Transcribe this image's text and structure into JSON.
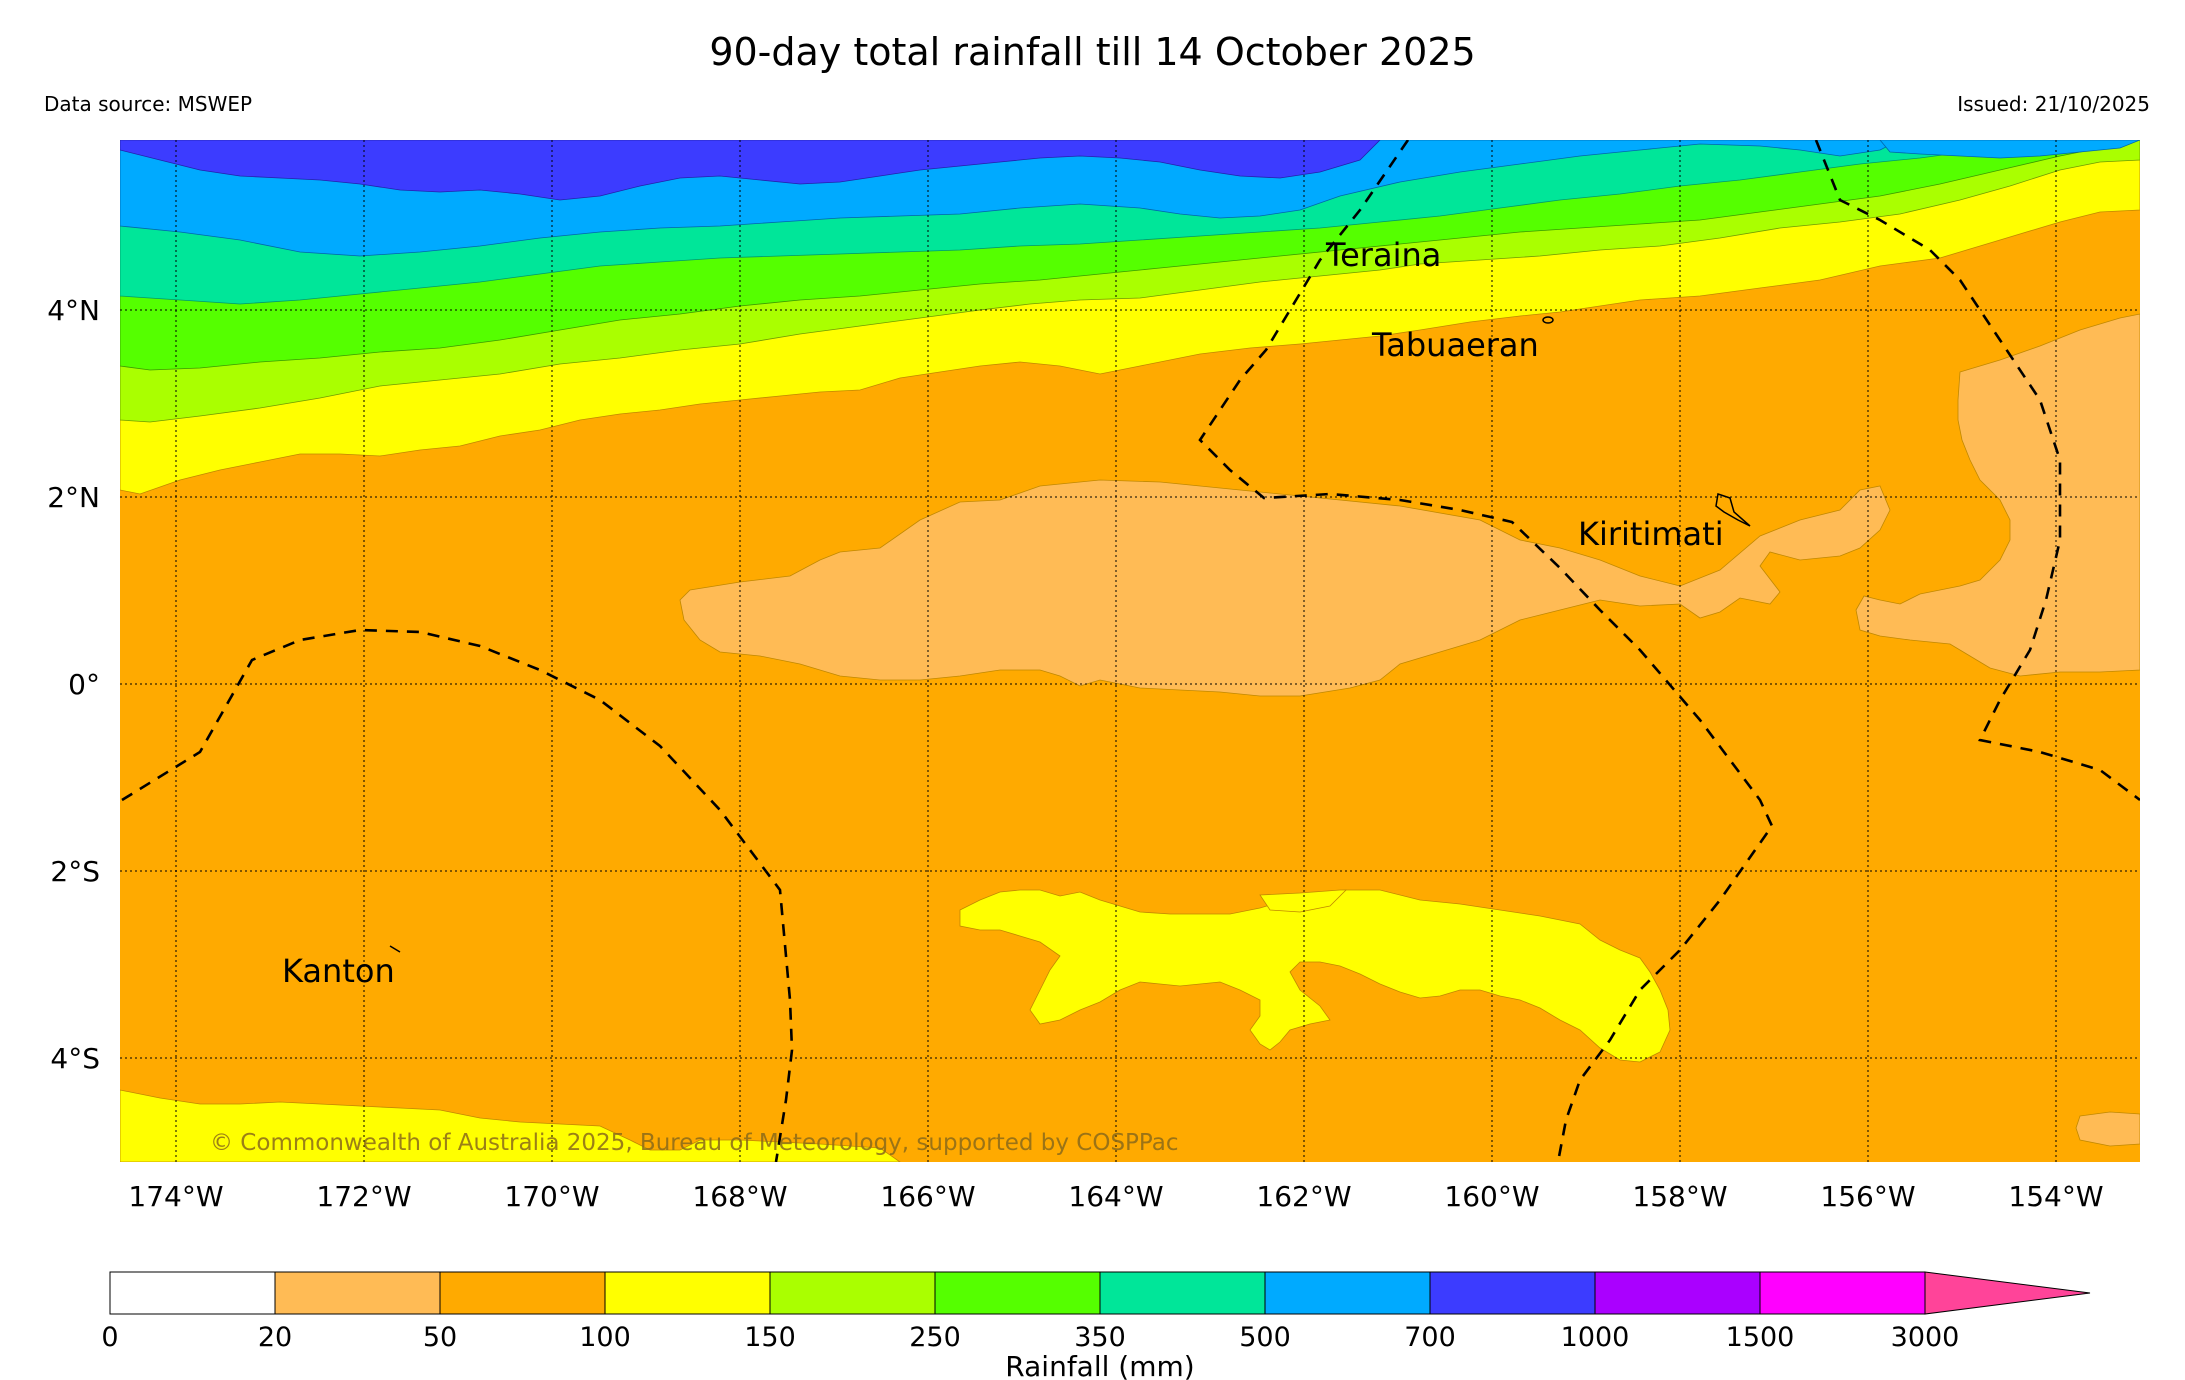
{
  "title": "90-day total rainfall till 14 October 2025",
  "data_source": "Data source: MSWEP",
  "issued": "Issued: 21/10/2025",
  "copyright": "© Commonwealth of Australia 2025, Bureau of Meteorology, supported by COSPPac",
  "map": {
    "lat_range": [
      -5.1,
      5.8
    ],
    "lon_range": [
      -174.6,
      -153.0
    ],
    "lat_labels": [
      "4°N",
      "2°N",
      "0°",
      "2°S",
      "4°S"
    ],
    "lon_labels": [
      "174°W",
      "172°W",
      "170°W",
      "168°W",
      "166°W",
      "164°W",
      "162°W",
      "160°W",
      "158°W",
      "156°W",
      "154°W"
    ],
    "places": [
      {
        "name": "Teraina"
      },
      {
        "name": "Tabuaeran"
      },
      {
        "name": "Kiritimati"
      },
      {
        "name": "Kanton"
      }
    ]
  },
  "colorbar": {
    "title": "Rainfall (mm)",
    "ticks": [
      "0",
      "20",
      "50",
      "100",
      "150",
      "250",
      "350",
      "500",
      "700",
      "1000",
      "1500",
      "3000"
    ],
    "colors": [
      "#ffffff",
      "#ffbb55",
      "#ffaa00",
      "#ffff00",
      "#aaff00",
      "#55ff00",
      "#00e699",
      "#00aaff",
      "#3c3cff",
      "#aa00ff",
      "#ff00ff",
      "#ff4499"
    ]
  }
}
